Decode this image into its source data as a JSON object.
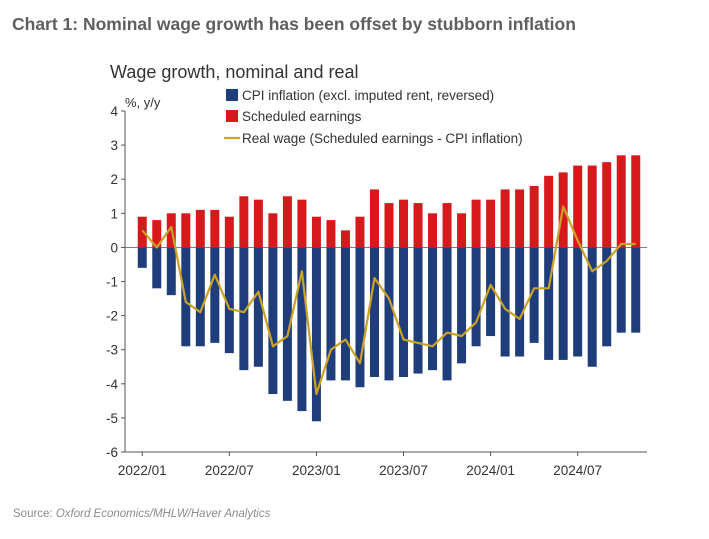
{
  "heading": "Chart 1: Nominal wage growth has been offset by stubborn inflation",
  "source": {
    "prefix": "Source: ",
    "text": "Oxford Economics/MHLW/Haver Analytics"
  },
  "colors": {
    "cpi": "#1f3d7a",
    "earnings": "#d7191c",
    "real": "#c9a227",
    "axis": "#555555"
  },
  "chart_data": {
    "type": "bar",
    "title": "Wage growth, nominal and real",
    "ylabel": "%, y/y",
    "ylim": [
      -6,
      4
    ],
    "yticks": [
      4,
      3,
      2,
      1,
      0,
      -1,
      -2,
      -3,
      -4,
      -5,
      -6
    ],
    "grid": false,
    "legend_position": "top",
    "x": [
      "2022/01",
      "2022/02",
      "2022/03",
      "2022/04",
      "2022/05",
      "2022/06",
      "2022/07",
      "2022/08",
      "2022/09",
      "2022/10",
      "2022/11",
      "2022/12",
      "2023/01",
      "2023/02",
      "2023/03",
      "2023/04",
      "2023/05",
      "2023/06",
      "2023/07",
      "2023/08",
      "2023/09",
      "2023/10",
      "2023/11",
      "2023/12",
      "2024/01",
      "2024/02",
      "2024/03",
      "2024/04",
      "2024/05",
      "2024/06",
      "2024/07",
      "2024/08",
      "2024/09",
      "2024/10",
      "2024/11"
    ],
    "xtick_labels": [
      "2022/01",
      "2022/07",
      "2023/01",
      "2023/07",
      "2024/01",
      "2024/07"
    ],
    "series": [
      {
        "name": "CPI inflation (excl. imputed rent, reversed)",
        "type": "bar",
        "values": [
          -0.6,
          -1.2,
          -1.4,
          -2.9,
          -2.9,
          -2.8,
          -3.1,
          -3.6,
          -3.5,
          -4.3,
          -4.5,
          -4.8,
          -5.1,
          -3.9,
          -3.9,
          -4.1,
          -3.8,
          -3.9,
          -3.8,
          -3.7,
          -3.6,
          -3.9,
          -3.4,
          -2.9,
          -2.6,
          -3.2,
          -3.2,
          -2.8,
          -3.3,
          -3.3,
          -3.2,
          -3.5,
          -2.9,
          -2.5,
          -2.5
        ]
      },
      {
        "name": "Scheduled earnings",
        "type": "bar",
        "values": [
          0.9,
          0.8,
          1.0,
          1.0,
          1.1,
          1.1,
          0.9,
          1.5,
          1.4,
          1.0,
          1.5,
          1.4,
          0.9,
          0.8,
          0.5,
          0.9,
          1.7,
          1.3,
          1.4,
          1.3,
          1.0,
          1.3,
          1.0,
          1.4,
          1.4,
          1.7,
          1.7,
          1.8,
          2.1,
          2.2,
          2.4,
          2.4,
          2.5,
          2.7,
          2.7
        ]
      },
      {
        "name": "Real wage (Scheduled earnings - CPI inflation)",
        "type": "line",
        "values": [
          0.5,
          0.0,
          0.6,
          -1.6,
          -1.9,
          -0.8,
          -1.8,
          -1.9,
          -1.3,
          -2.9,
          -2.6,
          -0.7,
          -4.3,
          -3.0,
          -2.7,
          -3.4,
          -0.9,
          -1.5,
          -2.7,
          -2.8,
          -2.9,
          -2.5,
          -2.6,
          -2.2,
          -1.1,
          -1.8,
          -2.1,
          -1.2,
          -1.2,
          1.2,
          0.2,
          -0.7,
          -0.4,
          0.1,
          0.1
        ]
      }
    ]
  }
}
